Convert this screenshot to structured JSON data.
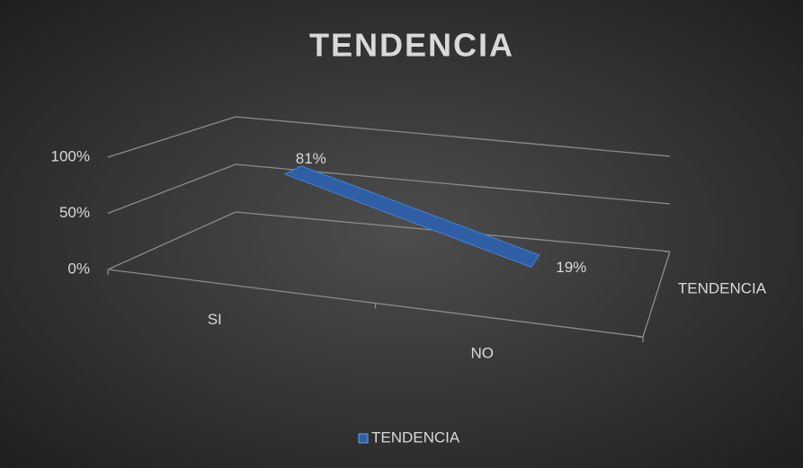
{
  "chart_data": {
    "type": "line3d",
    "title": "TENDENCIA",
    "categories": [
      "SI",
      "NO"
    ],
    "series": [
      {
        "name": "TENDENCIA",
        "color": "#2e5fa6",
        "values": [
          81,
          19
        ],
        "value_labels": [
          "81%",
          "19%"
        ]
      }
    ],
    "ylim": [
      0,
      100
    ],
    "yticks": [
      {
        "value": 0,
        "label": "0%"
      },
      {
        "value": 50,
        "label": "50%"
      },
      {
        "value": 100,
        "label": "100%"
      }
    ],
    "grid": true,
    "legend": "bottom"
  }
}
